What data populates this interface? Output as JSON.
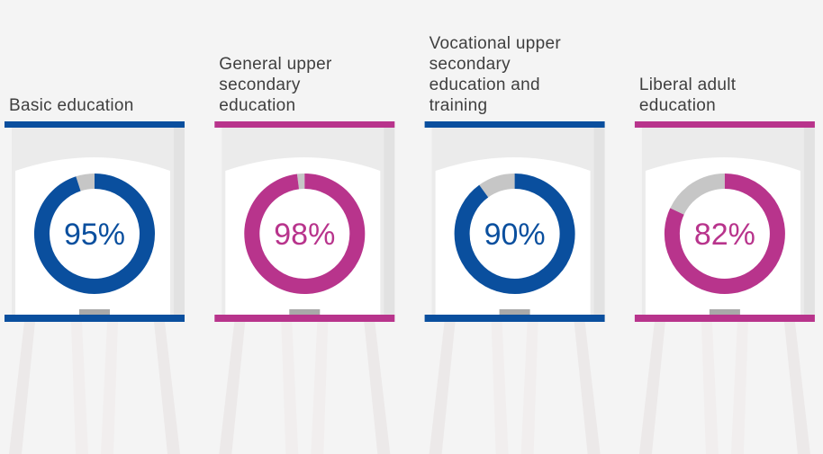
{
  "chart_data": [
    {
      "type": "donut",
      "title": "Basic education",
      "values": [
        95
      ],
      "value_labels": [
        "95%"
      ],
      "ylim": [
        0,
        100
      ],
      "color": "#0a4f9e",
      "rest_color": "#c6c6c6"
    },
    {
      "type": "donut",
      "title": "General upper secondary education",
      "values": [
        98
      ],
      "value_labels": [
        "98%"
      ],
      "ylim": [
        0,
        100
      ],
      "color": "#b8348c",
      "rest_color": "#c6c6c6"
    },
    {
      "type": "donut",
      "title": "Vocational upper secondary education and training",
      "values": [
        90
      ],
      "value_labels": [
        "90%"
      ],
      "ylim": [
        0,
        100
      ],
      "color": "#0a4f9e",
      "rest_color": "#c6c6c6"
    },
    {
      "type": "donut",
      "title": "Liberal adult education",
      "values": [
        82
      ],
      "value_labels": [
        "82%"
      ],
      "ylim": [
        0,
        100
      ],
      "color": "#b8348c",
      "rest_color": "#c6c6c6"
    }
  ]
}
